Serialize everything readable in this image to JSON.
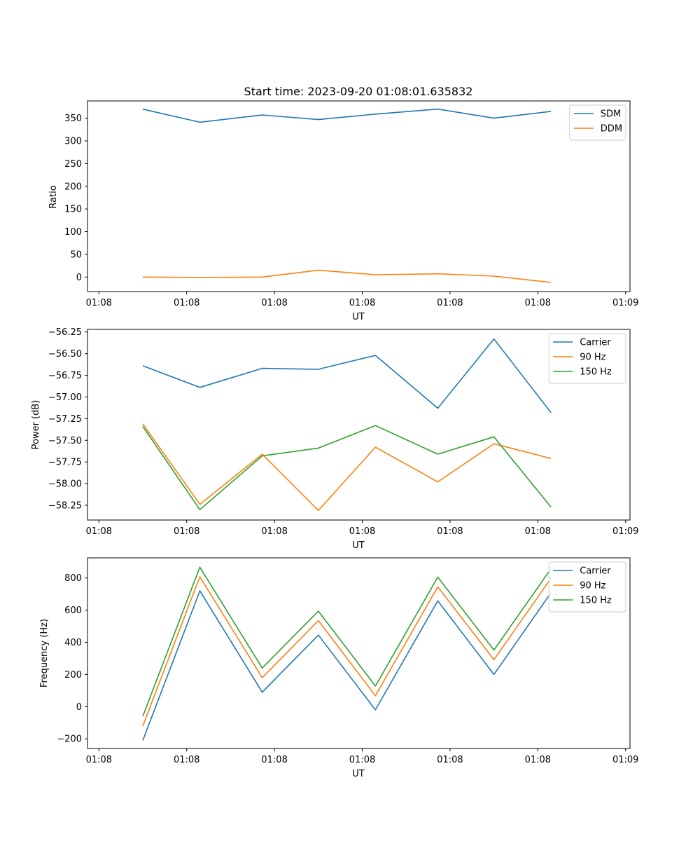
{
  "chart_data": [
    {
      "type": "line",
      "title": "Start time: 2023-09-20 01:08:01.635832",
      "xlabel": "UT",
      "ylabel": "Ratio",
      "xlim": [
        -0.28,
        5.9
      ],
      "ylim": [
        -32,
        388
      ],
      "x_ticks": [
        {
          "x": -0.15,
          "label": "01:08"
        },
        {
          "x": 0.85,
          "label": "01:08"
        },
        {
          "x": 1.85,
          "label": "01:08"
        },
        {
          "x": 2.85,
          "label": "01:08"
        },
        {
          "x": 3.85,
          "label": "01:08"
        },
        {
          "x": 4.85,
          "label": "01:08"
        },
        {
          "x": 5.85,
          "label": "01:09"
        }
      ],
      "y_ticks": [
        0,
        50,
        100,
        150,
        200,
        250,
        300,
        350
      ],
      "x": [
        0.35,
        1.0,
        1.71,
        2.35,
        3.0,
        3.71,
        4.35,
        5.0
      ],
      "series": [
        {
          "name": "SDM",
          "color": "#1f77b4",
          "values": [
            370,
            341,
            357,
            347,
            359,
            370,
            350,
            365
          ]
        },
        {
          "name": "DDM",
          "color": "#ff7f0e",
          "values": [
            0,
            -1,
            0,
            15,
            5,
            7,
            2,
            -12
          ]
        }
      ],
      "legend": "top-right"
    },
    {
      "type": "line",
      "title": "",
      "xlabel": "UT",
      "ylabel": "Power (dB)",
      "xlim": [
        -0.28,
        5.9
      ],
      "ylim": [
        -58.42,
        -56.22
      ],
      "x_ticks": [
        {
          "x": -0.15,
          "label": "01:08"
        },
        {
          "x": 0.85,
          "label": "01:08"
        },
        {
          "x": 1.85,
          "label": "01:08"
        },
        {
          "x": 2.85,
          "label": "01:08"
        },
        {
          "x": 3.85,
          "label": "01:08"
        },
        {
          "x": 4.85,
          "label": "01:08"
        },
        {
          "x": 5.85,
          "label": "01:09"
        }
      ],
      "y_ticks": [
        -58.25,
        -58.0,
        -57.75,
        -57.5,
        -57.25,
        -57.0,
        -56.75,
        -56.5,
        -56.25
      ],
      "y_tick_labels": [
        "−58.25",
        "−58.00",
        "−57.75",
        "−57.50",
        "−57.25",
        "−57.00",
        "−56.75",
        "−56.50",
        "−56.25"
      ],
      "x": [
        0.35,
        1.0,
        1.71,
        2.35,
        3.0,
        3.71,
        4.35,
        5.0
      ],
      "series": [
        {
          "name": "Carrier",
          "color": "#1f77b4",
          "values": [
            -56.64,
            -56.89,
            -56.67,
            -56.68,
            -56.52,
            -57.13,
            -56.33,
            -57.18
          ]
        },
        {
          "name": "90 Hz",
          "color": "#ff7f0e",
          "values": [
            -57.31,
            -58.24,
            -57.66,
            -58.31,
            -57.58,
            -57.98,
            -57.54,
            -57.71
          ]
        },
        {
          "name": "150 Hz",
          "color": "#2ca02c",
          "values": [
            -57.34,
            -58.3,
            -57.68,
            -57.59,
            -57.33,
            -57.66,
            -57.46,
            -58.27
          ]
        }
      ],
      "legend": "top-right"
    },
    {
      "type": "line",
      "title": "",
      "xlabel": "UT",
      "ylabel": "Frequency (Hz)",
      "xlim": [
        -0.28,
        5.9
      ],
      "ylim": [
        -260,
        925
      ],
      "x_ticks": [
        {
          "x": -0.15,
          "label": "01:08"
        },
        {
          "x": 0.85,
          "label": "01:08"
        },
        {
          "x": 1.85,
          "label": "01:08"
        },
        {
          "x": 2.85,
          "label": "01:08"
        },
        {
          "x": 3.85,
          "label": "01:08"
        },
        {
          "x": 4.85,
          "label": "01:08"
        },
        {
          "x": 5.85,
          "label": "01:09"
        }
      ],
      "y_ticks": [
        -200,
        0,
        200,
        400,
        600,
        800
      ],
      "y_tick_labels": [
        "−200",
        "0",
        "200",
        "400",
        "600",
        "800"
      ],
      "x": [
        0.35,
        1.0,
        1.71,
        2.35,
        3.0,
        3.71,
        4.35,
        5.0
      ],
      "series": [
        {
          "name": "Carrier",
          "color": "#1f77b4",
          "values": [
            -210,
            720,
            90,
            445,
            -20,
            658,
            200,
            708
          ]
        },
        {
          "name": "90 Hz",
          "color": "#ff7f0e",
          "values": [
            -120,
            808,
            180,
            535,
            68,
            745,
            292,
            798
          ]
        },
        {
          "name": "150 Hz",
          "color": "#2ca02c",
          "values": [
            -60,
            867,
            240,
            594,
            128,
            805,
            352,
            857
          ]
        }
      ],
      "legend": "top-right"
    }
  ]
}
